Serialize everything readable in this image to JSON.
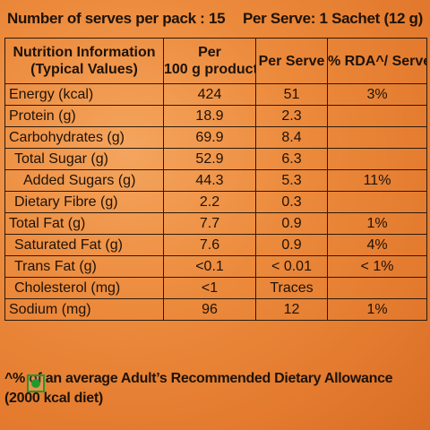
{
  "header": {
    "serves": "Number of serves per pack : 15",
    "per_serve": "Per Serve: 1 Sachet (12 g)"
  },
  "table": {
    "head": {
      "info_line1": "Nutrition Information",
      "info_line2": "(Typical Values)",
      "per100_line1": "Per",
      "per100_line2": "100 g product",
      "perserve": "Per Serve",
      "rda": "% RDA^/ Serve"
    },
    "rows": [
      {
        "label": "Energy (kcal)",
        "per100": "424",
        "serve": "51",
        "rda": "3%"
      },
      {
        "label": "Protein (g)",
        "per100": "18.9",
        "serve": "2.3",
        "rda": ""
      },
      {
        "label": "Carbohydrates (g)",
        "per100": "69.9",
        "serve": "8.4",
        "rda": ""
      },
      {
        "label": "Total Sugar (g)",
        "per100": "52.9",
        "serve": "6.3",
        "rda": ""
      },
      {
        "label": "Added Sugars (g)",
        "per100": "44.3",
        "serve": "5.3",
        "rda": "11%"
      },
      {
        "label": "Dietary Fibre (g)",
        "per100": "2.2",
        "serve": "0.3",
        "rda": ""
      },
      {
        "label": "Total Fat (g)",
        "per100": "7.7",
        "serve": "0.9",
        "rda": "1%"
      },
      {
        "label": "Saturated Fat (g)",
        "per100": "7.6",
        "serve": "0.9",
        "rda": "4%"
      },
      {
        "label": "Trans Fat (g)",
        "per100": "<0.1",
        "serve": "< 0.01",
        "rda": "< 1%"
      },
      {
        "label": "Cholesterol (mg)",
        "per100": "<1",
        "serve": "Traces",
        "rda": ""
      },
      {
        "label": "Sodium (mg)",
        "per100": "96",
        "serve": "12",
        "rda": "1%"
      }
    ]
  },
  "footer": {
    "line1": "^% of an average Adult’s Recommended Dietary Allowance",
    "line2": "(2000 kcal diet)"
  },
  "colors": {
    "background": "#ec8a3c",
    "veg_mark": "#1f9b2a"
  },
  "icons": {
    "veg_mark": "veg-symbol-icon"
  }
}
